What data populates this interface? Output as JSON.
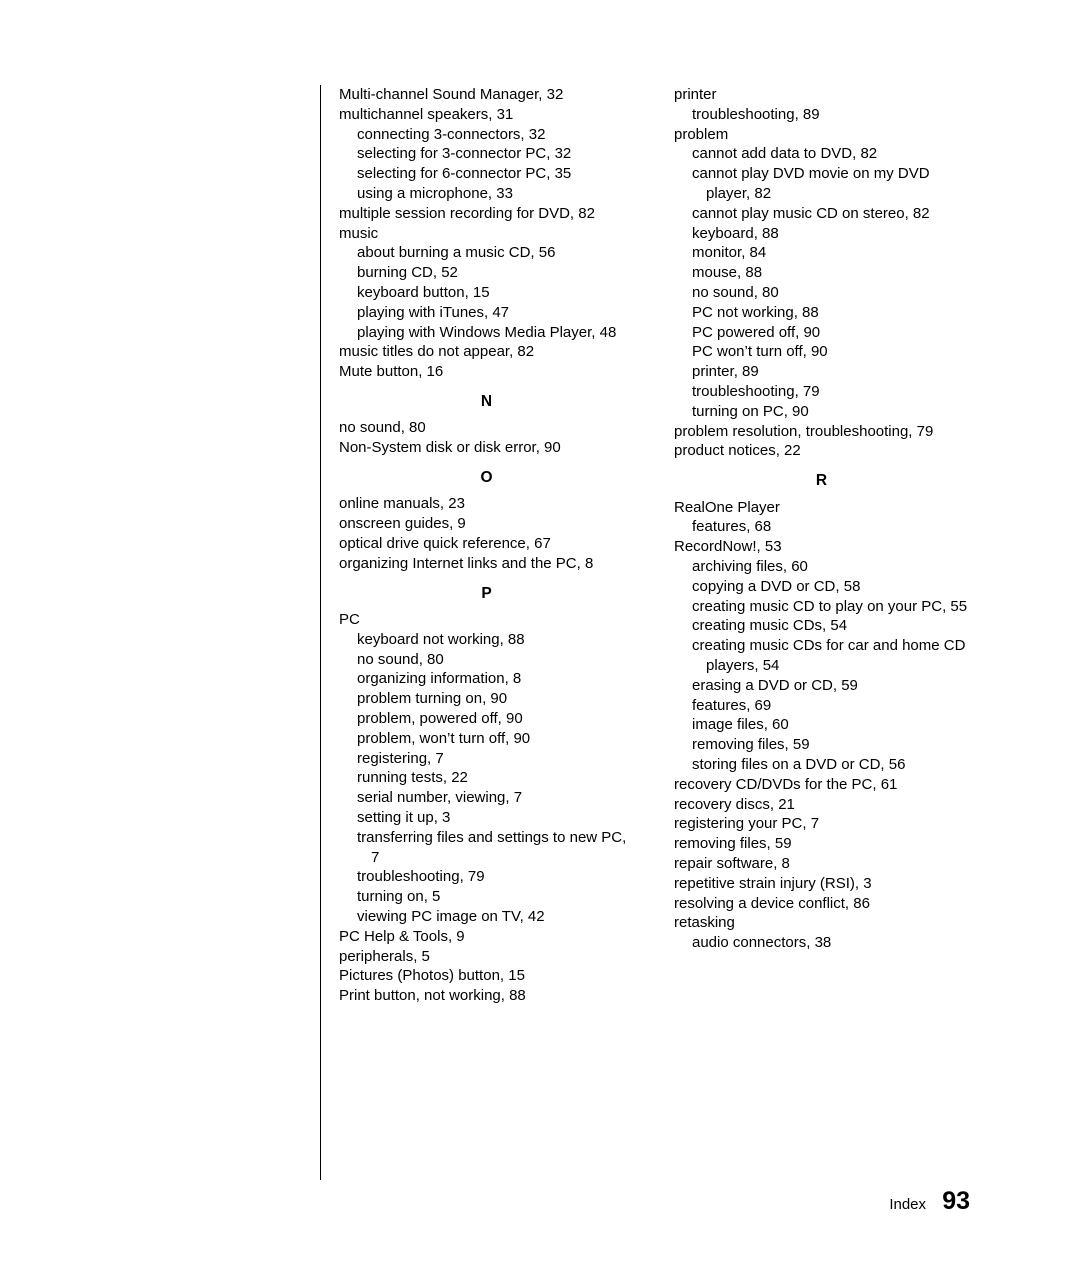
{
  "left_column": [
    {
      "lvl": 0,
      "text": "Multi-channel Sound Manager, 32"
    },
    {
      "lvl": 0,
      "text": "multichannel speakers, 31"
    },
    {
      "lvl": 1,
      "text": "connecting 3-connectors, 32"
    },
    {
      "lvl": 1,
      "text": "selecting for 3-connector PC, 32"
    },
    {
      "lvl": 1,
      "text": "selecting for 6-connector PC, 35"
    },
    {
      "lvl": 1,
      "text": "using a microphone, 33"
    },
    {
      "lvl": 0,
      "text": "multiple session recording for DVD, 82"
    },
    {
      "lvl": 0,
      "text": "music"
    },
    {
      "lvl": 1,
      "text": "about burning a music CD, 56"
    },
    {
      "lvl": 1,
      "text": "burning CD, 52"
    },
    {
      "lvl": 1,
      "text": "keyboard button, 15"
    },
    {
      "lvl": 1,
      "text": "playing with iTunes, 47"
    },
    {
      "lvl": 1,
      "text": "playing with Windows Media Player, 48"
    },
    {
      "lvl": 0,
      "text": "music titles do not appear, 82"
    },
    {
      "lvl": 0,
      "text": "Mute button, 16"
    },
    {
      "heading": "N"
    },
    {
      "lvl": 0,
      "text": "no sound, 80"
    },
    {
      "lvl": 0,
      "text": "Non-System disk or disk error, 90"
    },
    {
      "heading": "O"
    },
    {
      "lvl": 0,
      "text": "online manuals, 23"
    },
    {
      "lvl": 0,
      "text": "onscreen guides, 9"
    },
    {
      "lvl": 0,
      "text": "optical drive quick reference, 67"
    },
    {
      "lvl": 0,
      "text": "organizing Internet links and the PC, 8"
    },
    {
      "heading": "P"
    },
    {
      "lvl": 0,
      "text": "PC"
    },
    {
      "lvl": 1,
      "text": "keyboard not working, 88"
    },
    {
      "lvl": 1,
      "text": "no sound, 80"
    },
    {
      "lvl": 1,
      "text": "organizing information, 8"
    },
    {
      "lvl": 1,
      "text": "problem turning on, 90"
    },
    {
      "lvl": 1,
      "text": "problem, powered off, 90"
    },
    {
      "lvl": 1,
      "text": "problem, won’t turn off, 90"
    },
    {
      "lvl": 1,
      "text": "registering, 7"
    },
    {
      "lvl": 1,
      "text": "running tests, 22"
    },
    {
      "lvl": 1,
      "text": "serial number, viewing, 7"
    },
    {
      "lvl": 1,
      "text": "setting it up, 3"
    },
    {
      "lvl": 1,
      "text": "transferring files and settings to new PC, 7"
    },
    {
      "lvl": 1,
      "text": "troubleshooting, 79"
    },
    {
      "lvl": 1,
      "text": "turning on, 5"
    },
    {
      "lvl": 1,
      "text": "viewing PC image on TV, 42"
    },
    {
      "lvl": 0,
      "text": "PC Help & Tools, 9"
    },
    {
      "lvl": 0,
      "text": "peripherals, 5"
    },
    {
      "lvl": 0,
      "text": "Pictures (Photos) button, 15"
    },
    {
      "lvl": 0,
      "text": "Print button, not working, 88"
    }
  ],
  "right_column": [
    {
      "lvl": 0,
      "text": "printer"
    },
    {
      "lvl": 1,
      "text": "troubleshooting, 89"
    },
    {
      "lvl": 0,
      "text": "problem"
    },
    {
      "lvl": 1,
      "text": "cannot add data to DVD, 82"
    },
    {
      "lvl": 1,
      "text": "cannot play DVD movie on my DVD player, 82"
    },
    {
      "lvl": 1,
      "text": "cannot play music CD on stereo, 82"
    },
    {
      "lvl": 1,
      "text": "keyboard, 88"
    },
    {
      "lvl": 1,
      "text": "monitor, 84"
    },
    {
      "lvl": 1,
      "text": "mouse, 88"
    },
    {
      "lvl": 1,
      "text": "no sound, 80"
    },
    {
      "lvl": 1,
      "text": "PC not working, 88"
    },
    {
      "lvl": 1,
      "text": "PC powered off, 90"
    },
    {
      "lvl": 1,
      "text": "PC won’t turn off, 90"
    },
    {
      "lvl": 1,
      "text": "printer, 89"
    },
    {
      "lvl": 1,
      "text": "troubleshooting, 79"
    },
    {
      "lvl": 1,
      "text": "turning on PC, 90"
    },
    {
      "lvl": 0,
      "text": "problem resolution, troubleshooting, 79"
    },
    {
      "lvl": 0,
      "text": "product notices, 22"
    },
    {
      "heading": "R"
    },
    {
      "lvl": 0,
      "text": "RealOne Player"
    },
    {
      "lvl": 1,
      "text": "features, 68"
    },
    {
      "lvl": 0,
      "text": "RecordNow!, 53"
    },
    {
      "lvl": 1,
      "text": "archiving files, 60"
    },
    {
      "lvl": 1,
      "text": "copying a DVD or CD, 58"
    },
    {
      "lvl": 1,
      "text": "creating music CD to play on your PC, 55"
    },
    {
      "lvl": 1,
      "text": "creating music CDs, 54"
    },
    {
      "lvl": 1,
      "text": "creating music CDs for car and home CD players, 54"
    },
    {
      "lvl": 1,
      "text": "erasing a DVD or CD, 59"
    },
    {
      "lvl": 1,
      "text": "features, 69"
    },
    {
      "lvl": 1,
      "text": "image files, 60"
    },
    {
      "lvl": 1,
      "text": "removing files, 59"
    },
    {
      "lvl": 1,
      "text": "storing files on a DVD or CD, 56"
    },
    {
      "lvl": 0,
      "text": "recovery CD/DVDs for the PC, 61"
    },
    {
      "lvl": 0,
      "text": "recovery discs, 21"
    },
    {
      "lvl": 0,
      "text": "registering your PC, 7"
    },
    {
      "lvl": 0,
      "text": "removing files, 59"
    },
    {
      "lvl": 0,
      "text": "repair software, 8"
    },
    {
      "lvl": 0,
      "text": "repetitive strain injury (RSI), 3"
    },
    {
      "lvl": 0,
      "text": "resolving a device conflict, 86"
    },
    {
      "lvl": 0,
      "text": "retasking"
    },
    {
      "lvl": 1,
      "text": "audio connectors, 38"
    }
  ],
  "footer": {
    "label": "Index",
    "page": "93"
  }
}
